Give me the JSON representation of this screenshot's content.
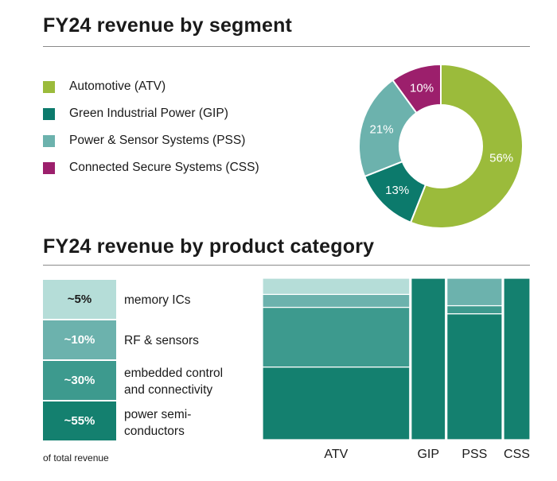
{
  "titles": {
    "segment": "FY24 revenue by segment",
    "product": "FY24 revenue by product category"
  },
  "legend": [
    {
      "label": "Automotive (ATV)",
      "color": "#9bbb3b"
    },
    {
      "label": "Green Industrial Power (GIP)",
      "color": "#0c7a6c"
    },
    {
      "label": "Power & Sensor Systems (PSS)",
      "color": "#6cb2ad"
    },
    {
      "label": "Connected Secure Systems (CSS)",
      "color": "#9c1f6c"
    }
  ],
  "categories": [
    {
      "pct": "~5%",
      "label": "memory ICs",
      "color": "#b5ddd8"
    },
    {
      "pct": "~10%",
      "label": "RF & sensors",
      "color": "#6cb2ad"
    },
    {
      "pct": "~30%",
      "label": "embedded control and connectivity",
      "color": "#3d9a8e"
    },
    {
      "pct": "~55%",
      "label": "power semi-conductors",
      "color": "#14806f"
    }
  ],
  "footnote": "of total revenue",
  "chart_data": [
    {
      "type": "pie",
      "title": "FY24 revenue by segment",
      "categories": [
        "Automotive (ATV)",
        "Green Industrial Power (GIP)",
        "Power & Sensor Systems (PSS)",
        "Connected Secure Systems (CSS)"
      ],
      "values": [
        56,
        13,
        21,
        10
      ],
      "labels": [
        "56%",
        "13%",
        "21%",
        "10%"
      ],
      "colors": [
        "#9bbb3b",
        "#0c7a6c",
        "#6cb2ad",
        "#9c1f6c"
      ],
      "donut": true
    },
    {
      "type": "bar",
      "stacked": true,
      "mosaic": true,
      "title": "FY24 revenue by product category",
      "categories": [
        "ATV",
        "GIP",
        "PSS",
        "CSS"
      ],
      "column_share": [
        56,
        13,
        21,
        10
      ],
      "series": [
        {
          "name": "power semi-conductors",
          "values": [
            45,
            100,
            78,
            100
          ]
        },
        {
          "name": "embedded control and connectivity",
          "values": [
            37,
            0,
            5,
            0
          ]
        },
        {
          "name": "RF & sensors",
          "values": [
            8,
            0,
            17,
            0
          ]
        },
        {
          "name": "memory ICs",
          "values": [
            10,
            0,
            0,
            0
          ]
        }
      ],
      "ylim": [
        0,
        100
      ]
    }
  ]
}
